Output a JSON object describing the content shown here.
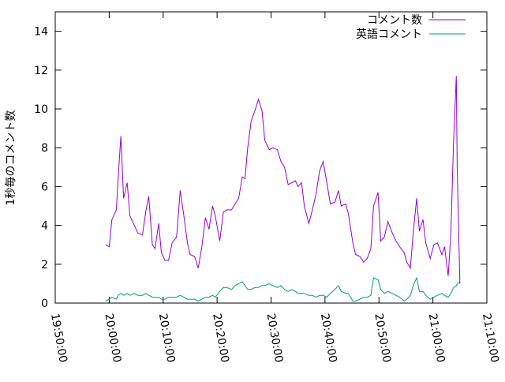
{
  "chart_data": {
    "type": "line",
    "y_label": "1秒毎のコメント数",
    "xlim": [
      "19:50:00",
      "21:10:00"
    ],
    "xticks": [
      "19:50:00",
      "20:00:00",
      "20:10:00",
      "20:20:00",
      "20:30:00",
      "20:40:00",
      "20:50:00",
      "21:00:00",
      "21:10:00"
    ],
    "ylim": [
      0,
      15
    ],
    "yticks": [
      0,
      2,
      4,
      6,
      8,
      10,
      12,
      14
    ],
    "legend": "top-right",
    "x": [
      "19:59:20",
      "20:00:00",
      "20:00:30",
      "20:01:20",
      "20:01:40",
      "20:02:10",
      "20:02:40",
      "20:03:20",
      "20:03:50",
      "20:04:40",
      "20:05:20",
      "20:06:10",
      "20:06:50",
      "20:07:20",
      "20:08:00",
      "20:08:30",
      "20:09:10",
      "20:09:40",
      "20:10:20",
      "20:11:00",
      "20:11:40",
      "20:12:30",
      "20:13:10",
      "20:13:50",
      "20:14:30",
      "20:15:00",
      "20:15:50",
      "20:16:30",
      "20:17:10",
      "20:17:50",
      "20:18:30",
      "20:19:10",
      "20:19:40",
      "20:20:30",
      "20:21:10",
      "20:21:50",
      "20:22:40",
      "20:23:20",
      "20:24:00",
      "20:24:40",
      "20:25:10",
      "20:25:40",
      "20:26:20",
      "20:27:00",
      "20:27:40",
      "20:28:20",
      "20:28:50",
      "20:29:40",
      "20:30:20",
      "20:31:10",
      "20:31:50",
      "20:32:30",
      "20:33:10",
      "20:33:50",
      "20:34:30",
      "20:35:00",
      "20:35:40",
      "20:36:10",
      "20:37:00",
      "20:37:40",
      "20:38:20",
      "20:39:00",
      "20:39:40",
      "20:40:20",
      "20:41:00",
      "20:41:50",
      "20:42:30",
      "20:43:00",
      "20:43:50",
      "20:44:20",
      "20:45:10",
      "20:45:40",
      "20:46:30",
      "20:47:10",
      "20:47:50",
      "20:48:30",
      "20:49:00",
      "20:49:50",
      "20:50:20",
      "20:51:00",
      "20:51:40",
      "20:52:30",
      "20:53:10",
      "20:53:50",
      "20:54:40",
      "20:55:10",
      "20:55:50",
      "20:56:20",
      "20:57:00",
      "20:57:30",
      "20:58:10",
      "20:58:40",
      "20:59:30",
      "21:00:10",
      "21:00:50",
      "21:01:40",
      "21:02:10",
      "21:02:50",
      "21:03:20",
      "21:03:50",
      "21:04:20",
      "21:04:30",
      "21:05:00"
    ],
    "series": [
      {
        "name": "コメント数",
        "color": "#9400d3",
        "values": [
          3.0,
          2.9,
          4.3,
          4.8,
          6.5,
          8.6,
          5.4,
          6.2,
          4.5,
          4.0,
          3.6,
          3.5,
          4.8,
          5.5,
          3.0,
          2.8,
          4.1,
          2.6,
          2.2,
          2.2,
          3.1,
          3.4,
          5.8,
          4.5,
          3.1,
          2.5,
          2.4,
          1.8,
          2.9,
          4.4,
          3.8,
          5.0,
          4.5,
          3.2,
          4.7,
          4.8,
          4.8,
          5.1,
          5.4,
          6.5,
          6.4,
          8.0,
          9.4,
          9.9,
          10.5,
          9.9,
          8.4,
          7.9,
          8.0,
          7.9,
          7.3,
          7.0,
          6.1,
          6.2,
          6.3,
          6.0,
          6.2,
          5.0,
          4.1,
          4.8,
          5.6,
          6.8,
          7.3,
          6.2,
          5.1,
          5.2,
          5.8,
          5.0,
          5.1,
          4.6,
          3.1,
          2.5,
          2.4,
          2.1,
          2.3,
          2.8,
          5.0,
          5.7,
          3.2,
          3.4,
          4.2,
          3.6,
          3.2,
          2.9,
          2.6,
          2.1,
          1.8,
          3.6,
          5.4,
          3.7,
          4.3,
          3.1,
          2.3,
          3.0,
          3.1,
          2.5,
          2.9,
          1.4,
          3.6,
          8.3,
          11.7,
          7.0,
          1.0
        ]
      },
      {
        "name": "英語コメント",
        "color": "#009e73",
        "values": [
          0.1,
          0.2,
          0.3,
          0.2,
          0.4,
          0.5,
          0.4,
          0.5,
          0.4,
          0.5,
          0.4,
          0.4,
          0.5,
          0.4,
          0.3,
          0.3,
          0.3,
          0.2,
          0.2,
          0.3,
          0.3,
          0.3,
          0.4,
          0.3,
          0.2,
          0.2,
          0.2,
          0.1,
          0.2,
          0.3,
          0.3,
          0.4,
          0.3,
          0.6,
          0.8,
          0.8,
          0.7,
          0.9,
          1.0,
          1.1,
          0.9,
          0.7,
          0.7,
          0.8,
          0.8,
          0.9,
          0.9,
          1.0,
          0.9,
          0.8,
          0.9,
          0.7,
          0.6,
          0.7,
          0.6,
          0.5,
          0.5,
          0.5,
          0.4,
          0.4,
          0.3,
          0.4,
          0.4,
          0.3,
          0.5,
          0.7,
          0.9,
          0.6,
          0.5,
          0.5,
          0.1,
          0.1,
          0.2,
          0.3,
          0.3,
          0.4,
          1.3,
          1.2,
          0.7,
          0.5,
          0.6,
          0.5,
          0.4,
          0.3,
          0.1,
          0.2,
          0.4,
          0.9,
          1.3,
          0.6,
          0.6,
          0.4,
          0.2,
          0.3,
          0.4,
          0.5,
          0.4,
          0.3,
          0.5,
          0.8,
          0.9,
          1.0,
          1.1
        ]
      }
    ]
  }
}
